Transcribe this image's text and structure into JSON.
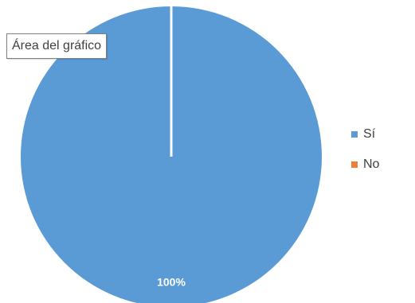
{
  "tooltip": {
    "text": "Área del gráfico"
  },
  "chart_data": {
    "type": "pie",
    "categories": [
      "Sí",
      "No"
    ],
    "values": [
      1.0,
      0.0
    ],
    "data_labels": [
      "100%"
    ],
    "colors": [
      "#5b9bd5",
      "#ed7d31"
    ],
    "legend": "right",
    "title": ""
  }
}
